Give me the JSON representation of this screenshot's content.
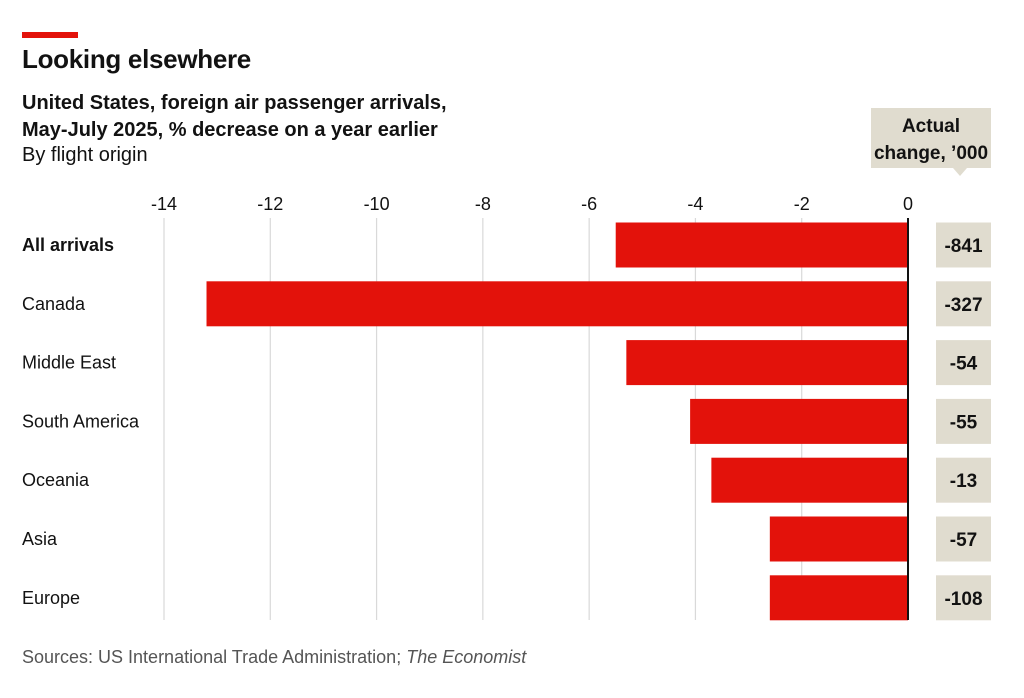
{
  "title": "Looking elsewhere",
  "subtitle_line1": "United States, foreign air passenger arrivals,",
  "subtitle_line2": "May-July 2025, % decrease on a year earlier",
  "subtitle_line3": "By flight origin",
  "source_prefix": "Sources: US International Trade Administration; ",
  "source_suffix": "The Economist",
  "colors": {
    "accent": "#E3120B",
    "bar": "#E3120B",
    "box": "#E0DCCF",
    "grid": "#D9D9D9"
  },
  "chart_data": {
    "type": "bar",
    "orientation": "horizontal",
    "categories": [
      "All arrivals",
      "Canada",
      "Middle East",
      "South America",
      "Oceania",
      "Asia",
      "Europe"
    ],
    "values": [
      -5.5,
      -13.2,
      -5.3,
      -4.1,
      -3.7,
      -2.6,
      -2.6
    ],
    "xlim": [
      -14,
      0
    ],
    "xticks": [
      -14,
      -12,
      -10,
      -8,
      -6,
      -4,
      -2,
      0
    ],
    "tick_labels": [
      "-14",
      "-12",
      "-10",
      "-8",
      "-6",
      "-4",
      "-2",
      "0"
    ],
    "grid": true,
    "actual_change_header": [
      "Actual",
      "change, ’000"
    ],
    "actual_change": [
      "-841",
      "-327",
      "-54",
      "-55",
      "-13",
      "-57",
      "-108"
    ]
  }
}
